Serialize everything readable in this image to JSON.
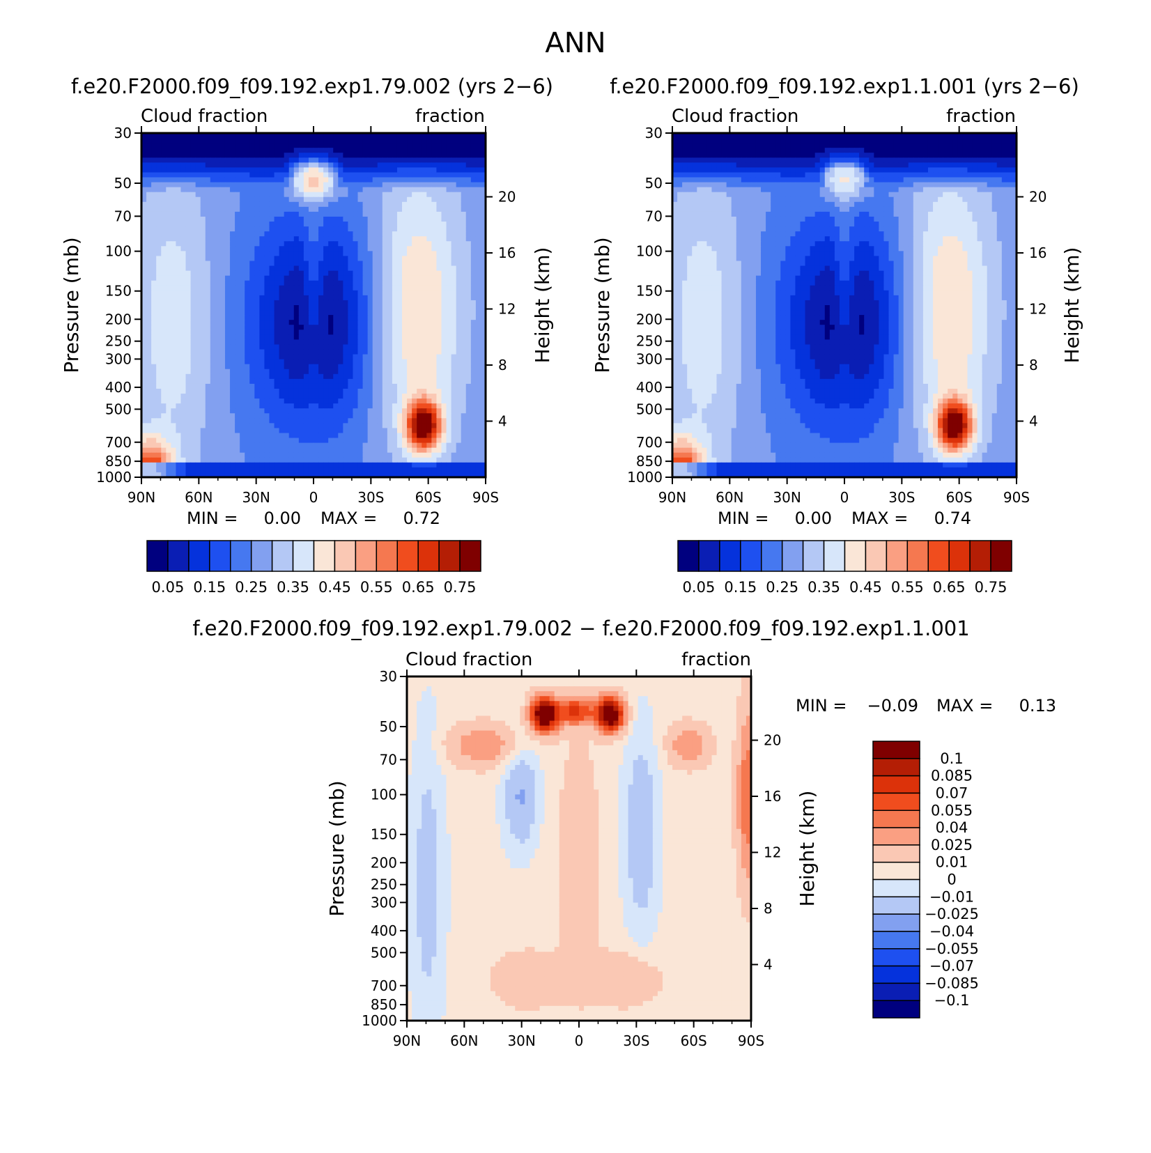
{
  "figure": {
    "title": "ANN"
  },
  "chart_data": [
    {
      "type": "heatmap",
      "title": "f.e20.F2000.f09_f09.192.exp1.79.002 (yrs 2−6)",
      "left_label": "Cloud fraction",
      "right_label": "fraction",
      "ylabel": "Pressure (mb)",
      "ylabel_right": "Height (km)",
      "x_ticks": [
        "90N",
        "60N",
        "30N",
        "0",
        "30S",
        "60S",
        "90S"
      ],
      "y_ticks": [
        "30",
        "50",
        "70",
        "100",
        "150",
        "200",
        "250",
        "300",
        "400",
        "500",
        "700",
        "850",
        "1000"
      ],
      "height_ticks": [
        "20",
        "16",
        "12",
        "8",
        "4"
      ],
      "ylim": [
        1000,
        30
      ],
      "y_scale": "log",
      "stats": {
        "min_label": "MIN =",
        "min": "0.00",
        "max_label": "MAX =",
        "max": "0.72"
      },
      "colorbar": {
        "orientation": "horizontal",
        "tick_labels": [
          "0.05",
          "0.15",
          "0.25",
          "0.35",
          "0.45",
          "0.55",
          "0.65",
          "0.75"
        ],
        "colors": [
          "#00007f",
          "#0a1eb4",
          "#0532dc",
          "#1e50f0",
          "#4678f0",
          "#82a0f0",
          "#b4c8f5",
          "#d7e6fa",
          "#fae6d7",
          "#fac8b4",
          "#fa9f82",
          "#f57850",
          "#f04d1e",
          "#dc320a",
          "#b41e05",
          "#7f0000"
        ]
      }
    },
    {
      "type": "heatmap",
      "title": "f.e20.F2000.f09_f09.192.exp1.1.001 (yrs 2−6)",
      "left_label": "Cloud fraction",
      "right_label": "fraction",
      "ylabel": "Pressure (mb)",
      "ylabel_right": "Height (km)",
      "x_ticks": [
        "90N",
        "60N",
        "30N",
        "0",
        "30S",
        "60S",
        "90S"
      ],
      "y_ticks": [
        "30",
        "50",
        "70",
        "100",
        "150",
        "200",
        "250",
        "300",
        "400",
        "500",
        "700",
        "850",
        "1000"
      ],
      "height_ticks": [
        "20",
        "16",
        "12",
        "8",
        "4"
      ],
      "ylim": [
        1000,
        30
      ],
      "y_scale": "log",
      "stats": {
        "min_label": "MIN =",
        "min": "0.00",
        "max_label": "MAX =",
        "max": "0.74"
      },
      "colorbar": {
        "orientation": "horizontal",
        "tick_labels": [
          "0.05",
          "0.15",
          "0.25",
          "0.35",
          "0.45",
          "0.55",
          "0.65",
          "0.75"
        ],
        "colors": [
          "#00007f",
          "#0a1eb4",
          "#0532dc",
          "#1e50f0",
          "#4678f0",
          "#82a0f0",
          "#b4c8f5",
          "#d7e6fa",
          "#fae6d7",
          "#fac8b4",
          "#fa9f82",
          "#f57850",
          "#f04d1e",
          "#dc320a",
          "#b41e05",
          "#7f0000"
        ]
      }
    },
    {
      "type": "heatmap",
      "title": "f.e20.F2000.f09_f09.192.exp1.79.002 − f.e20.F2000.f09_f09.192.exp1.1.001",
      "left_label": "Cloud fraction",
      "right_label": "fraction",
      "ylabel": "Pressure (mb)",
      "ylabel_right": "Height (km)",
      "x_ticks": [
        "90N",
        "60N",
        "30N",
        "0",
        "30S",
        "60S",
        "90S"
      ],
      "y_ticks": [
        "30",
        "50",
        "70",
        "100",
        "150",
        "200",
        "250",
        "300",
        "400",
        "500",
        "700",
        "850",
        "1000"
      ],
      "height_ticks": [
        "20",
        "16",
        "12",
        "8",
        "4"
      ],
      "ylim": [
        1000,
        30
      ],
      "y_scale": "log",
      "stats": {
        "min_label": "MIN =",
        "min": "−0.09",
        "max_label": "MAX =",
        "max": "0.13"
      },
      "colorbar": {
        "orientation": "vertical",
        "tick_labels": [
          "0.1",
          "0.085",
          "0.07",
          "0.055",
          "0.04",
          "0.025",
          "0.01",
          "0",
          "−0.01",
          "−0.025",
          "−0.04",
          "−0.055",
          "−0.07",
          "−0.085",
          "−0.1"
        ],
        "colors": [
          "#7f0000",
          "#b41e05",
          "#dc320a",
          "#f04d1e",
          "#f57850",
          "#fa9f82",
          "#fac8b4",
          "#fae6d7",
          "#d7e6fa",
          "#b4c8f5",
          "#82a0f0",
          "#4678f0",
          "#1e50f0",
          "#0532dc",
          "#0a1eb4",
          "#00007f"
        ]
      }
    }
  ]
}
